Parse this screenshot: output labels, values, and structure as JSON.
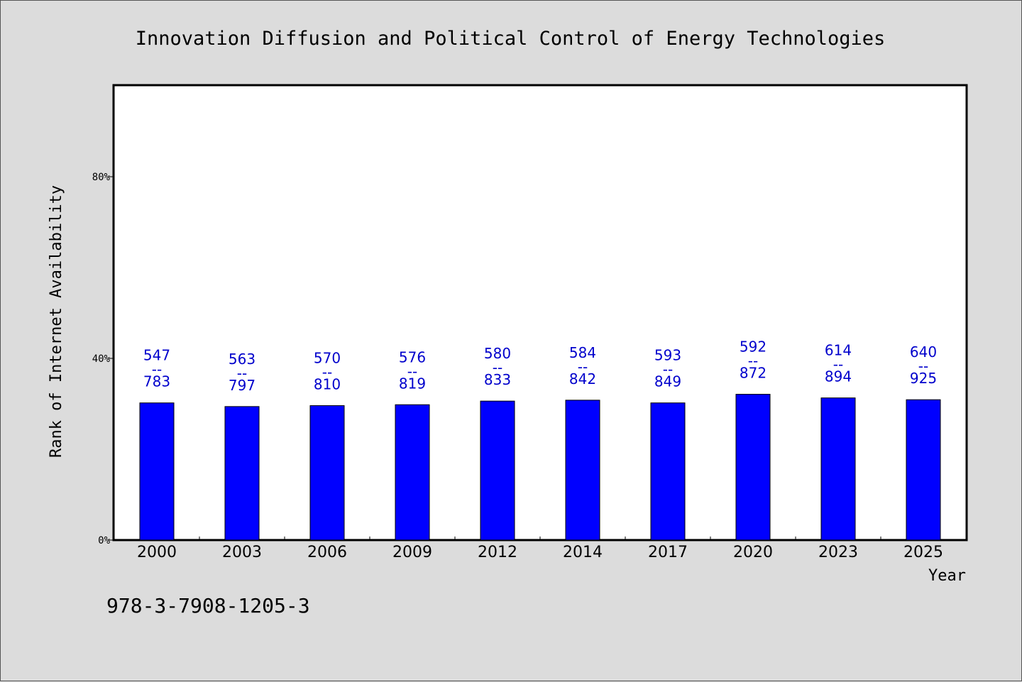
{
  "chart_data": {
    "type": "bar",
    "title": "Innovation Diffusion and Political Control of Energy Technologies",
    "xlabel": "Year",
    "ylabel": "Rank of Internet Availability",
    "ylim": [
      0,
      100
    ],
    "yticks": [
      0,
      40,
      80
    ],
    "ytick_labels": [
      "0%",
      "40%",
      "80%"
    ],
    "categories": [
      "2000",
      "2003",
      "2006",
      "2009",
      "2012",
      "2014",
      "2017",
      "2020",
      "2023",
      "2025"
    ],
    "values": [
      30.2,
      29.4,
      29.6,
      29.8,
      30.6,
      30.8,
      30.2,
      32.1,
      31.3,
      30.9
    ],
    "label_top": [
      "547",
      "563",
      "570",
      "576",
      "580",
      "584",
      "593",
      "592",
      "614",
      "640"
    ],
    "label_sep": "--",
    "label_bottom": [
      "783",
      "797",
      "810",
      "819",
      "833",
      "842",
      "849",
      "872",
      "894",
      "925"
    ],
    "bar_color": "#0000ff",
    "label_color": "#0000cc",
    "grid": false,
    "legend": "none"
  },
  "footer": {
    "isbn": "978-3-7908-1205-3"
  }
}
